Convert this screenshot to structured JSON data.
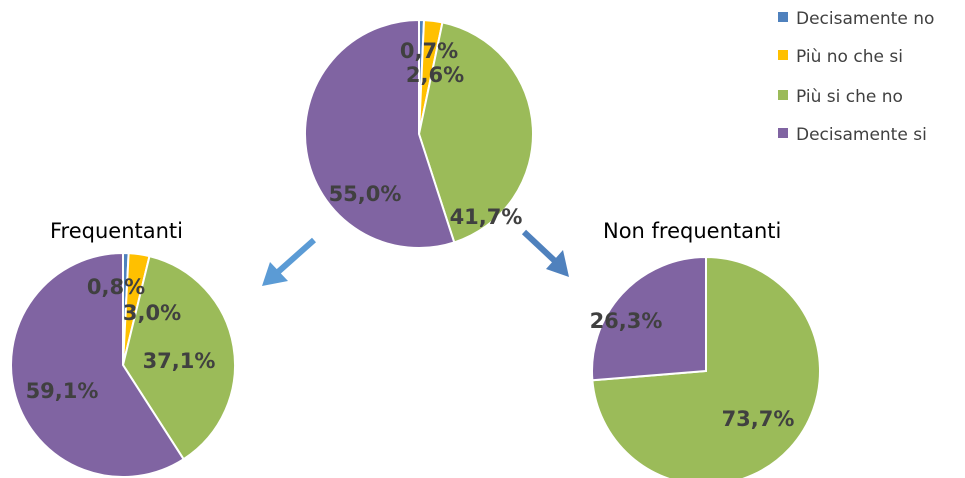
{
  "legend": {
    "items": [
      {
        "label": "Decisamente no",
        "color": "#4f81bd"
      },
      {
        "label": "Più no che si",
        "color": "#ffc000"
      },
      {
        "label": "Più si che no",
        "color": "#9bbb59"
      },
      {
        "label": "Decisamente si",
        "color": "#8064a2"
      }
    ]
  },
  "arrows": {
    "color": "#5b9bd5"
  },
  "chart_data": [
    {
      "type": "pie",
      "title": "",
      "categories": [
        "Decisamente no",
        "Più no che si",
        "Più si che no",
        "Decisamente si"
      ],
      "values": [
        0.7,
        2.6,
        41.7,
        55.0
      ],
      "labels": [
        "0,7%",
        "2,6%",
        "41,7%",
        "55,0%"
      ]
    },
    {
      "type": "pie",
      "title": "Frequentanti",
      "categories": [
        "Decisamente no",
        "Più no che si",
        "Più si che no",
        "Decisamente si"
      ],
      "values": [
        0.8,
        3.0,
        37.1,
        59.1
      ],
      "labels": [
        "0,8%",
        "3,0%",
        "37,1%",
        "59,1%"
      ]
    },
    {
      "type": "pie",
      "title": "Non frequentanti",
      "categories": [
        "Più si che no",
        "Decisamente si"
      ],
      "values": [
        73.7,
        26.3
      ],
      "labels": [
        "73,7%",
        "26,3%"
      ]
    }
  ]
}
